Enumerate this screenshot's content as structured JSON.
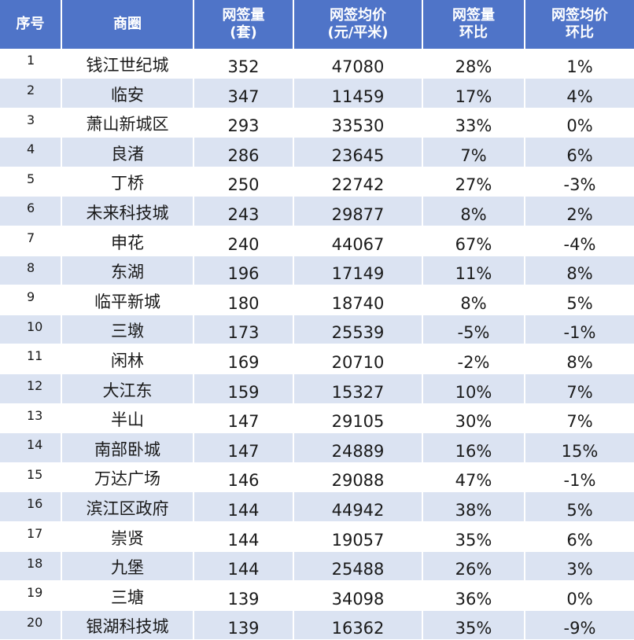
{
  "table": {
    "headers": {
      "idx": [
        "序号"
      ],
      "area": [
        "商圈"
      ],
      "volume": [
        "网签量",
        "(套)"
      ],
      "price": [
        "网签均价",
        "(元/平米)"
      ],
      "volume_mom": [
        "网签量",
        "环比"
      ],
      "price_mom": [
        "网签均价",
        "环比"
      ]
    },
    "rows": [
      {
        "idx": "1",
        "area": "钱江世纪城",
        "volume": "352",
        "price": "47080",
        "volume_mom": "28%",
        "price_mom": "1%"
      },
      {
        "idx": "2",
        "area": "临安",
        "volume": "347",
        "price": "11459",
        "volume_mom": "17%",
        "price_mom": "4%"
      },
      {
        "idx": "3",
        "area": "萧山新城区",
        "volume": "293",
        "price": "33530",
        "volume_mom": "33%",
        "price_mom": "0%"
      },
      {
        "idx": "4",
        "area": "良渚",
        "volume": "286",
        "price": "23645",
        "volume_mom": "7%",
        "price_mom": "6%"
      },
      {
        "idx": "5",
        "area": "丁桥",
        "volume": "250",
        "price": "22742",
        "volume_mom": "27%",
        "price_mom": "-3%"
      },
      {
        "idx": "6",
        "area": "未来科技城",
        "volume": "243",
        "price": "29877",
        "volume_mom": "8%",
        "price_mom": "2%"
      },
      {
        "idx": "7",
        "area": "申花",
        "volume": "240",
        "price": "44067",
        "volume_mom": "67%",
        "price_mom": "-4%"
      },
      {
        "idx": "8",
        "area": "东湖",
        "volume": "196",
        "price": "17149",
        "volume_mom": "11%",
        "price_mom": "8%"
      },
      {
        "idx": "9",
        "area": "临平新城",
        "volume": "180",
        "price": "18740",
        "volume_mom": "8%",
        "price_mom": "5%"
      },
      {
        "idx": "10",
        "area": "三墩",
        "volume": "173",
        "price": "25539",
        "volume_mom": "-5%",
        "price_mom": "-1%"
      },
      {
        "idx": "11",
        "area": "闲林",
        "volume": "169",
        "price": "20710",
        "volume_mom": "-2%",
        "price_mom": "8%"
      },
      {
        "idx": "12",
        "area": "大江东",
        "volume": "159",
        "price": "15327",
        "volume_mom": "10%",
        "price_mom": "7%"
      },
      {
        "idx": "13",
        "area": "半山",
        "volume": "147",
        "price": "29105",
        "volume_mom": "30%",
        "price_mom": "7%"
      },
      {
        "idx": "14",
        "area": "南部卧城",
        "volume": "147",
        "price": "24889",
        "volume_mom": "16%",
        "price_mom": "15%"
      },
      {
        "idx": "15",
        "area": "万达广场",
        "volume": "146",
        "price": "29088",
        "volume_mom": "47%",
        "price_mom": "-1%"
      },
      {
        "idx": "16",
        "area": "滨江区政府",
        "volume": "144",
        "price": "44942",
        "volume_mom": "38%",
        "price_mom": "5%"
      },
      {
        "idx": "17",
        "area": "崇贤",
        "volume": "144",
        "price": "19057",
        "volume_mom": "35%",
        "price_mom": "6%"
      },
      {
        "idx": "18",
        "area": "九堡",
        "volume": "144",
        "price": "25488",
        "volume_mom": "26%",
        "price_mom": "3%"
      },
      {
        "idx": "19",
        "area": "三塘",
        "volume": "139",
        "price": "34098",
        "volume_mom": "36%",
        "price_mom": "0%"
      },
      {
        "idx": "20",
        "area": "银湖科技城",
        "volume": "139",
        "price": "16362",
        "volume_mom": "35%",
        "price_mom": "-9%"
      }
    ]
  },
  "colors": {
    "header_bg": "#4f74c8",
    "header_text": "#ffffff",
    "stripe_bg": "#dbe3f2",
    "row_bg": "#ffffff"
  }
}
